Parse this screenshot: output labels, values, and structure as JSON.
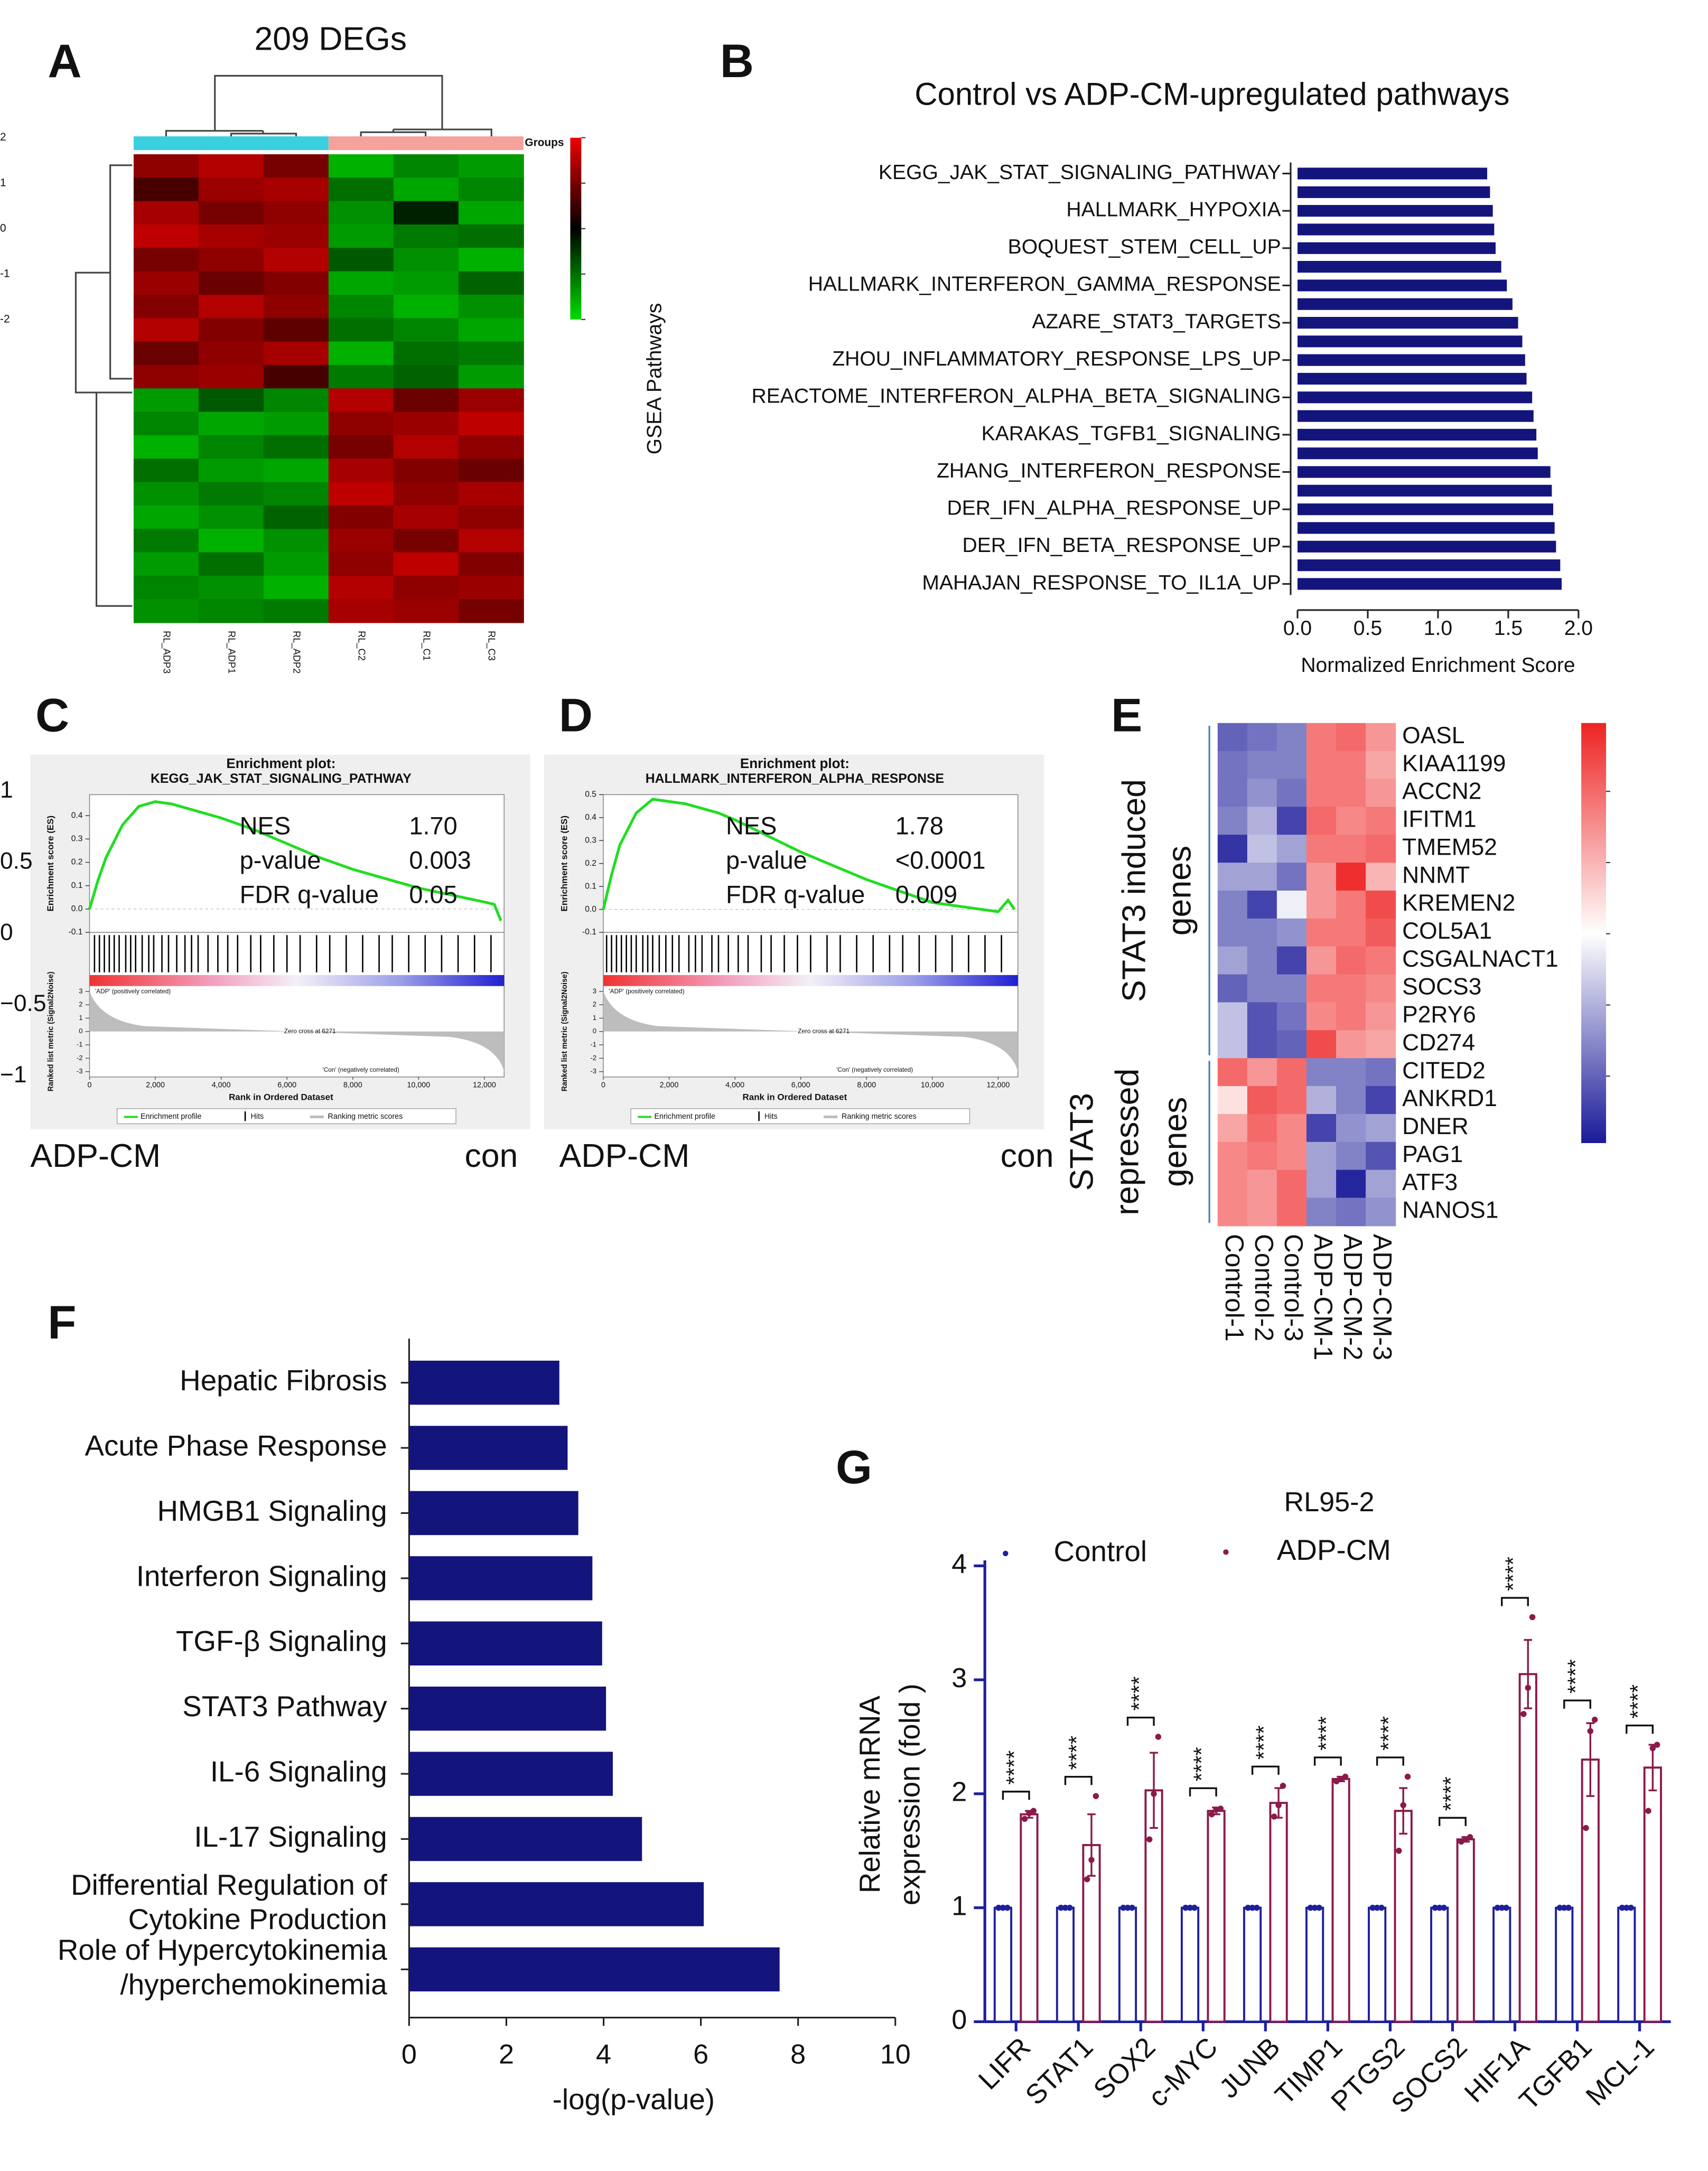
{
  "panel_labels": [
    "A",
    "B",
    "C",
    "D",
    "E",
    "F",
    "G"
  ],
  "chart_data": [
    {
      "type": "heatmap",
      "title": "209 DEGs",
      "legend_title": "Groups",
      "columns": [
        "RL_ADP3",
        "RL_ADP1",
        "RL_ADP2",
        "RL_C2",
        "RL_C1",
        "RL_C3"
      ],
      "group_colors": [
        "#3ad0e0",
        "#f6a29c"
      ],
      "colorscale": [
        "#00dd00",
        "#000000",
        "#ee0000"
      ],
      "clim": [
        -2,
        2
      ],
      "colorbar_ticks": [
        2,
        1,
        0,
        -1,
        -2
      ],
      "values": [
        [
          1.2,
          1.5,
          1.0,
          -1.6,
          -1.2,
          -1.4
        ],
        [
          0.6,
          1.3,
          1.4,
          -1.0,
          -1.5,
          -1.2
        ],
        [
          1.4,
          1.0,
          1.2,
          -1.3,
          -0.3,
          -1.5
        ],
        [
          1.6,
          1.4,
          1.3,
          -1.4,
          -1.1,
          -1.0
        ],
        [
          1.0,
          1.2,
          1.5,
          -0.8,
          -1.3,
          -1.6
        ],
        [
          1.3,
          0.9,
          1.1,
          -1.5,
          -1.4,
          -0.9
        ],
        [
          1.1,
          1.5,
          1.2,
          -1.2,
          -1.6,
          -1.3
        ],
        [
          1.5,
          1.1,
          0.8,
          -1.0,
          -1.2,
          -1.5
        ],
        [
          0.9,
          1.2,
          1.4,
          -1.6,
          -1.0,
          -1.1
        ],
        [
          1.2,
          1.3,
          0.6,
          -1.1,
          -0.9,
          -1.4
        ],
        [
          -1.4,
          -0.8,
          -1.2,
          1.5,
          0.9,
          1.3
        ],
        [
          -1.2,
          -1.5,
          -1.4,
          1.2,
          1.3,
          1.6
        ],
        [
          -1.6,
          -1.2,
          -1.0,
          1.0,
          1.5,
          1.2
        ],
        [
          -1.0,
          -1.4,
          -1.5,
          1.4,
          1.1,
          0.9
        ],
        [
          -1.3,
          -1.1,
          -1.2,
          1.6,
          1.2,
          1.4
        ],
        [
          -1.5,
          -1.3,
          -0.9,
          1.1,
          1.4,
          1.2
        ],
        [
          -1.1,
          -1.6,
          -1.3,
          1.3,
          1.0,
          1.5
        ],
        [
          -1.4,
          -1.0,
          -1.4,
          1.2,
          1.6,
          1.1
        ],
        [
          -1.2,
          -1.3,
          -1.6,
          1.5,
          1.2,
          1.3
        ],
        [
          -1.3,
          -1.2,
          -1.1,
          1.4,
          1.3,
          1.0
        ]
      ]
    },
    {
      "type": "bar",
      "orientation": "horizontal",
      "title": "Control vs ADP-CM-upregulated  pathways",
      "ylabel": "GSEA Pathways",
      "xlabel": "Normalized Enrichment Score",
      "color": "#14147d",
      "categories": [
        "KEGG_JAK_STAT_SIGNALING_PATHWAY",
        null,
        "HALLMARK_HYPOXIA",
        null,
        "BOQUEST_STEM_CELL_UP",
        null,
        "HALLMARK_INTERFERON_GAMMA_RESPONSE",
        null,
        "AZARE_STAT3_TARGETS",
        null,
        "ZHOU_INFLAMMATORY_RESPONSE_LPS_UP",
        null,
        "REACTOME_INTERFERON_ALPHA_BETA_SIGNALING",
        null,
        "KARAKAS_TGFB1_SIGNALING",
        null,
        "ZHANG_INTERFERON_RESPONSE",
        null,
        "DER_IFN_ALPHA_RESPONSE_UP",
        null,
        "DER_IFN_BETA_RESPONSE_UP",
        null,
        "MAHAJAN_RESPONSE_TO_IL1A_UP"
      ],
      "values": [
        1.35,
        1.37,
        1.39,
        1.4,
        1.41,
        1.45,
        1.49,
        1.53,
        1.57,
        1.6,
        1.62,
        1.63,
        1.67,
        1.68,
        1.7,
        1.71,
        1.8,
        1.81,
        1.82,
        1.83,
        1.84,
        1.87,
        1.88
      ],
      "xlim": [
        0,
        2
      ],
      "xticks": [
        {
          "value": 0,
          "label": "0.0"
        },
        0.5,
        {
          "value": 1,
          "label": "1.0"
        },
        1.5,
        {
          "value": 2,
          "label": "2.0"
        }
      ]
    },
    {
      "type": "line",
      "title": "Enrichment plot:",
      "subtitle": "KEGG_JAK_STAT_SIGNALING_PATHWAY",
      "ylabel": "Enrichment score (ES)",
      "xlabel": "Rank in Ordered Dataset",
      "metric_ylabel": "Ranked list metric (Signal2Noise)",
      "x": [
        0,
        250,
        500,
        1000,
        1500,
        2000,
        2500,
        3000,
        3500,
        4000,
        5000,
        6000,
        7000,
        8000,
        9000,
        10000,
        11000,
        12000,
        12300,
        12500
      ],
      "values": [
        0,
        0.12,
        0.22,
        0.36,
        0.44,
        0.46,
        0.45,
        0.43,
        0.41,
        0.39,
        0.34,
        0.28,
        0.22,
        0.17,
        0.13,
        0.09,
        0.06,
        0.03,
        0.02,
        -0.05
      ],
      "color": "#22dd22",
      "xlim": [
        0,
        12600
      ],
      "xticks": [
        0,
        {
          "value": 2000,
          "label": "2,000"
        },
        {
          "value": 4000,
          "label": "4,000"
        },
        {
          "value": 6000,
          "label": "6,000"
        },
        {
          "value": 8000,
          "label": "8,000"
        },
        {
          "value": 10000,
          "label": "10,000"
        },
        {
          "value": 12000,
          "label": "12,000"
        }
      ],
      "ylim": [
        -0.1,
        0.49
      ],
      "yticks": [
        -0.1,
        {
          "value": 0,
          "label": "0.0"
        },
        0.1,
        0.2,
        0.3,
        0.4
      ],
      "metric_ylim": [
        -3.4,
        3.4
      ],
      "metric_yticks": [
        3,
        2,
        1,
        0,
        -1,
        -2,
        -3
      ],
      "hits": [
        150,
        300,
        450,
        600,
        750,
        900,
        1100,
        1250,
        1400,
        1600,
        1800,
        1950,
        2200,
        2400,
        2650,
        2900,
        3100,
        3300,
        3600,
        3900,
        4200,
        4500,
        4900,
        5200,
        5600,
        6000,
        6400,
        6900,
        7300,
        7800,
        8300,
        8800,
        9200,
        9700,
        10200,
        10700,
        11200,
        11700,
        12200
      ],
      "stat_names": [
        "NES",
        "p-value",
        "FDR q-value"
      ],
      "stat_values": [
        "1.70",
        "0.003",
        "0.05"
      ],
      "pos_label": "'ADP' (positively correlated)",
      "zero_cross": "Zero cross at 6271",
      "neg_label": "'Con' (negatively correlated)",
      "legend": [
        "Enrichment profile",
        "Hits",
        "Ranking metric scores"
      ],
      "group_labels": [
        "ADP-CM",
        "con"
      ]
    },
    {
      "type": "line",
      "title": "Enrichment plot:",
      "subtitle": "HALLMARK_INTERFERON_ALPHA_RESPONSE",
      "ylabel": "Enrichment score (ES)",
      "xlabel": "Rank in Ordered Dataset",
      "metric_ylabel": "Ranked list metric (Signal2Noise)",
      "x": [
        0,
        250,
        500,
        1000,
        1500,
        2000,
        2500,
        3000,
        3500,
        4000,
        5000,
        6000,
        7000,
        8000,
        9000,
        10000,
        11000,
        12000,
        12300,
        12500
      ],
      "values": [
        0,
        0.15,
        0.28,
        0.42,
        0.48,
        0.47,
        0.46,
        0.44,
        0.42,
        0.39,
        0.32,
        0.25,
        0.19,
        0.13,
        0.08,
        0.03,
        0.01,
        -0.01,
        0.04,
        0.0
      ],
      "color": "#22dd22",
      "xlim": [
        0,
        12600
      ],
      "xticks": [
        0,
        {
          "value": 2000,
          "label": "2,000"
        },
        {
          "value": 4000,
          "label": "4,000"
        },
        {
          "value": 6000,
          "label": "6,000"
        },
        {
          "value": 8000,
          "label": "8,000"
        },
        {
          "value": 10000,
          "label": "10,000"
        },
        {
          "value": 12000,
          "label": "12,000"
        }
      ],
      "ylim": [
        -0.1,
        0.5
      ],
      "yticks": [
        -0.1,
        {
          "value": 0,
          "label": "0.0"
        },
        0.1,
        0.2,
        0.3,
        0.4,
        0.5
      ],
      "metric_ylim": [
        -3.4,
        3.4
      ],
      "metric_yticks": [
        3,
        2,
        1,
        0,
        -1,
        -2,
        -3
      ],
      "hits": [
        100,
        250,
        400,
        550,
        700,
        850,
        1000,
        1200,
        1350,
        1500,
        1700,
        1900,
        2100,
        2300,
        2600,
        2800,
        3000,
        3300,
        3500,
        3800,
        4100,
        4400,
        4800,
        5100,
        5500,
        5900,
        6300,
        6800,
        7200,
        7700,
        8200,
        8700,
        9100,
        9600,
        10100,
        10600,
        11100,
        11600,
        12100
      ],
      "stat_names": [
        "NES",
        "p-value",
        "FDR q-value"
      ],
      "stat_values": [
        "1.78",
        "<0.0001",
        "0.009"
      ],
      "pos_label": "'ADP' (positively correlated)",
      "zero_cross": "Zero cross at 6271",
      "neg_label": "'Con' (negatively correlated)",
      "legend": [
        "Enrichment profile",
        "Hits",
        "Ranking metric scores"
      ],
      "group_labels": [
        "ADP-CM",
        "con"
      ]
    },
    {
      "type": "heatmap",
      "columns": [
        "Control-1",
        "Control-2",
        "Control-3",
        "ADP-CM-1",
        "ADP-CM-2",
        "ADP-CM-3"
      ],
      "rows": [
        "OASL",
        "KIAA1199",
        "ACCN2",
        "IFITM1",
        "TMEM52",
        "NNMT",
        "KREMEN2",
        "COL5A1",
        "CSGALNACT1",
        "SOCS3",
        "P2RY6",
        "CD274",
        "CITED2",
        "ANKRD1",
        "DNER",
        "PAG1",
        "ATF3",
        "NANOS1"
      ],
      "row_groups": [
        [
          "STAT3 induced",
          "genes"
        ],
        [
          "STAT3",
          "repressed",
          "genes"
        ]
      ],
      "colorscale": [
        "#1a1a99",
        "#ffffff",
        "#ee2222"
      ],
      "clim": [
        -1.47,
        1.48
      ],
      "colorbar_ticks": [
        1,
        0.5,
        0,
        {
          "value": -0.5,
          "label": "−0.5"
        },
        {
          "value": -1,
          "label": "−1"
        }
      ],
      "values": [
        [
          -1.0,
          -0.9,
          -0.8,
          0.9,
          1.0,
          0.7
        ],
        [
          -0.9,
          -0.8,
          -0.8,
          0.9,
          0.9,
          0.6
        ],
        [
          -0.9,
          -0.7,
          -0.9,
          0.9,
          0.9,
          0.7
        ],
        [
          -0.8,
          -0.5,
          -1.2,
          1.0,
          0.8,
          0.9
        ],
        [
          -1.3,
          -0.4,
          -0.6,
          0.9,
          0.9,
          1.0
        ],
        [
          -0.6,
          -0.6,
          -0.9,
          0.7,
          1.4,
          0.5
        ],
        [
          -0.8,
          -1.2,
          -0.1,
          0.7,
          0.9,
          1.2
        ],
        [
          -0.8,
          -0.8,
          -0.7,
          0.9,
          0.9,
          1.1
        ],
        [
          -0.6,
          -0.8,
          -1.2,
          0.7,
          1.0,
          0.9
        ],
        [
          -1.0,
          -0.8,
          -0.8,
          0.9,
          0.9,
          0.8
        ],
        [
          -0.4,
          -1.1,
          -0.9,
          0.8,
          0.9,
          0.7
        ],
        [
          -0.4,
          -1.1,
          -1.0,
          1.2,
          0.7,
          0.6
        ],
        [
          1.0,
          0.7,
          1.0,
          -0.8,
          -0.8,
          -0.9
        ],
        [
          0.2,
          1.1,
          1.0,
          -0.5,
          -0.8,
          -1.2
        ],
        [
          0.6,
          1.0,
          0.8,
          -1.2,
          -0.7,
          -0.6
        ],
        [
          0.8,
          0.9,
          0.8,
          -0.6,
          -0.8,
          -1.1
        ],
        [
          0.8,
          0.7,
          1.0,
          -0.6,
          -1.4,
          -0.6
        ],
        [
          0.8,
          0.7,
          1.0,
          -0.8,
          -0.9,
          -0.7
        ]
      ]
    },
    {
      "type": "bar",
      "orientation": "horizontal",
      "xlabel": "-log(p-value)",
      "color": "#14147d",
      "categories": [
        "Hepatic Fibrosis",
        "Acute Phase Response",
        "HMGB1 Signaling",
        "Interferon Signaling",
        "TGF-β Signaling",
        "STAT3 Pathway",
        "IL-6 Signaling",
        "IL-17 Signaling",
        [
          "Differential Regulation of",
          "Cytokine Production"
        ],
        [
          "Role of Hypercytokinemia",
          "/hyperchemokinemia"
        ]
      ],
      "values": [
        3.09,
        3.26,
        3.48,
        3.77,
        3.97,
        4.05,
        4.19,
        4.79,
        6.06,
        7.62
      ],
      "xlim": [
        0,
        10
      ],
      "xticks": [
        0,
        2,
        4,
        6,
        8,
        10
      ]
    },
    {
      "type": "bar",
      "title": "RL95-2",
      "ylabel": [
        "Relative mRNA",
        "expression (fold )"
      ],
      "categories": [
        "LIFR",
        "STAT1",
        "SOX2",
        "c-MYC",
        "JUNB",
        "TIMP1",
        "PTGS2",
        "SOCS2",
        "HIF1A",
        "TGFB1",
        "MCL-1"
      ],
      "series": [
        {
          "name": "Control",
          "color": "#1f1f9e",
          "values": [
            1,
            1,
            1,
            1,
            1,
            1,
            1,
            1,
            1,
            1,
            1
          ],
          "errors": [
            0,
            0,
            0,
            0,
            0,
            0,
            0,
            0,
            0,
            0,
            0
          ],
          "points": [
            [
              1,
              1,
              1
            ],
            [
              1,
              1,
              1
            ],
            [
              1,
              1,
              1
            ],
            [
              1,
              1,
              1
            ],
            [
              1,
              1,
              1
            ],
            [
              1,
              1,
              1
            ],
            [
              1,
              1,
              1
            ],
            [
              1,
              1,
              1
            ],
            [
              1,
              1,
              1
            ],
            [
              1,
              1,
              1
            ],
            [
              1,
              1,
              1
            ]
          ]
        },
        {
          "name": "ADP-CM",
          "color": "#8b1a4a",
          "values": [
            1.82,
            1.55,
            2.03,
            1.85,
            1.92,
            2.13,
            1.85,
            1.6,
            3.05,
            2.3,
            2.23
          ],
          "errors": [
            0.03,
            0.27,
            0.33,
            0.03,
            0.13,
            0.02,
            0.2,
            0.02,
            0.3,
            0.32,
            0.2
          ],
          "points": [
            [
              1.78,
              1.83,
              1.85
            ],
            [
              1.25,
              1.42,
              1.98
            ],
            [
              1.6,
              2.0,
              2.5
            ],
            [
              1.82,
              1.86,
              1.87
            ],
            [
              1.8,
              1.9,
              2.07
            ],
            [
              2.11,
              2.13,
              2.15
            ],
            [
              1.5,
              1.9,
              2.15
            ],
            [
              1.58,
              1.6,
              1.62
            ],
            [
              2.7,
              2.93,
              3.55
            ],
            [
              1.7,
              2.55,
              2.65
            ],
            [
              1.85,
              2.4,
              2.43
            ]
          ]
        }
      ],
      "annotations": [
        "****",
        "****",
        "****",
        "****",
        "****",
        "****",
        "****",
        "****",
        "****",
        "****",
        "****"
      ],
      "ylim": [
        0,
        4
      ],
      "yticks": [
        0,
        1,
        2,
        3,
        4
      ]
    }
  ]
}
